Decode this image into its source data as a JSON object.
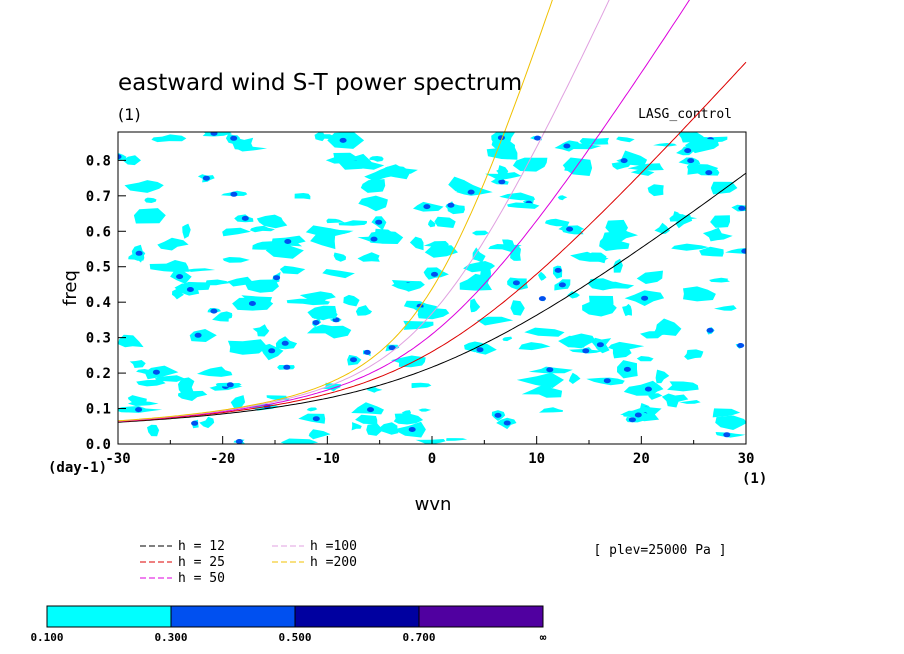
{
  "chart_data": {
    "type": "line",
    "title": "eastward wind S-T power spectrum",
    "subtitle": "(1)",
    "run_label": "LASG_control",
    "xlabel": "wvn",
    "ylabel": "freq",
    "x_unit": "(1)",
    "y_unit": "(day-1)",
    "xlim": [
      -30,
      30
    ],
    "ylim": [
      0.0,
      0.88
    ],
    "xticks": [
      "-30",
      "-20",
      "-10",
      "0",
      "10",
      "20",
      "30"
    ],
    "yticks": [
      "0.0",
      "0.1",
      "0.2",
      "0.3",
      "0.4",
      "0.5",
      "0.6",
      "0.7",
      "0.8"
    ],
    "plev_note": "[ plev=25000 Pa ]",
    "series": [
      {
        "name": "h = 12",
        "color": "#000000",
        "equivalent_depth": 12
      },
      {
        "name": "h = 25",
        "color": "#dd0000",
        "equivalent_depth": 25
      },
      {
        "name": "h = 50",
        "color": "#dd00dd",
        "equivalent_depth": 50
      },
      {
        "name": "h =100",
        "color": "#e0a0e0",
        "equivalent_depth": 100
      },
      {
        "name": "h =200",
        "color": "#f0c000",
        "equivalent_depth": 200
      }
    ],
    "colorbar": {
      "colors": [
        "#00ffff",
        "#0050f0",
        "#0000a0",
        "#5000a0"
      ],
      "labels": [
        "0.100",
        "0.300",
        "0.500",
        "0.700",
        "∞"
      ]
    }
  }
}
